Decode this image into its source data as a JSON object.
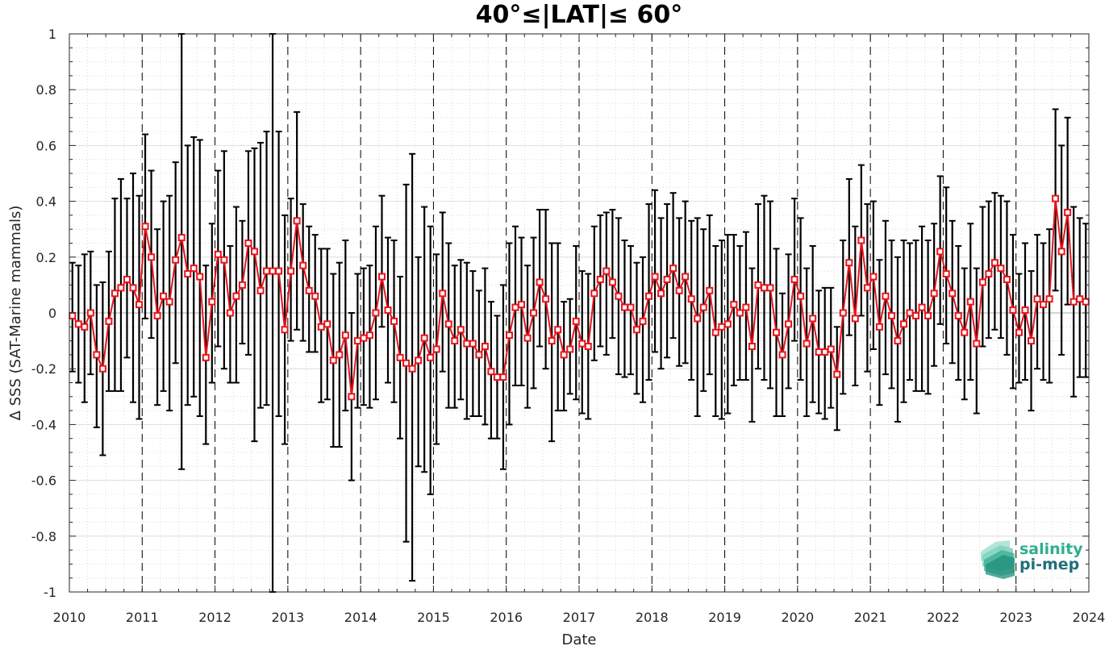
{
  "chart_data": {
    "type": "line",
    "title": "40°≤|LAT|≤ 60°",
    "xlabel": "Date",
    "ylabel": "Δ SSS (SAT-Marine mammals)",
    "xlim": [
      "2010-01-01",
      "2024-01-01"
    ],
    "ylim": [
      -1,
      1
    ],
    "x_tick_labels": [
      "2010",
      "2011",
      "2012",
      "2013",
      "2014",
      "2015",
      "2016",
      "2017",
      "2018",
      "2019",
      "2020",
      "2021",
      "2022",
      "2023",
      "2024"
    ],
    "y_tick_labels": [
      "-1",
      "-0.8",
      "-0.6",
      "-0.4",
      "-0.2",
      "0",
      "0.2",
      "0.4",
      "0.6",
      "0.8",
      "1"
    ],
    "y_ticks": [
      -1,
      -0.8,
      -0.6,
      -0.4,
      -0.2,
      0,
      0.2,
      0.4,
      0.6,
      0.8,
      1
    ],
    "grid": true,
    "year_dividers": [
      "2011",
      "2012",
      "2013",
      "2014",
      "2015",
      "2016",
      "2017",
      "2018",
      "2019",
      "2020",
      "2021",
      "2022",
      "2023"
    ],
    "series": [
      {
        "color": "#e8141c",
        "errorbar_color": "#000000",
        "x": [
          "2010-01",
          "2010-02",
          "2010-03",
          "2010-04",
          "2010-05",
          "2010-06",
          "2010-07",
          "2010-08",
          "2010-09",
          "2010-10",
          "2010-11",
          "2010-12",
          "2011-01",
          "2011-02",
          "2011-03",
          "2011-04",
          "2011-05",
          "2011-06",
          "2011-07",
          "2011-08",
          "2011-09",
          "2011-10",
          "2011-11",
          "2011-12",
          "2012-01",
          "2012-02",
          "2012-03",
          "2012-04",
          "2012-05",
          "2012-06",
          "2012-07",
          "2012-08",
          "2012-09",
          "2012-10",
          "2012-11",
          "2012-12",
          "2013-01",
          "2013-02",
          "2013-03",
          "2013-04",
          "2013-05",
          "2013-06",
          "2013-07",
          "2013-08",
          "2013-09",
          "2013-10",
          "2013-11",
          "2013-12",
          "2014-01",
          "2014-02",
          "2014-03",
          "2014-04",
          "2014-05",
          "2014-06",
          "2014-07",
          "2014-08",
          "2014-09",
          "2014-10",
          "2014-11",
          "2014-12",
          "2015-01",
          "2015-02",
          "2015-03",
          "2015-04",
          "2015-05",
          "2015-06",
          "2015-07",
          "2015-08",
          "2015-09",
          "2015-10",
          "2015-11",
          "2015-12",
          "2016-01",
          "2016-02",
          "2016-03",
          "2016-04",
          "2016-05",
          "2016-06",
          "2016-07",
          "2016-08",
          "2016-09",
          "2016-10",
          "2016-11",
          "2016-12",
          "2017-01",
          "2017-02",
          "2017-03",
          "2017-04",
          "2017-05",
          "2017-06",
          "2017-07",
          "2017-08",
          "2017-09",
          "2017-10",
          "2017-11",
          "2017-12",
          "2018-01",
          "2018-02",
          "2018-03",
          "2018-04",
          "2018-05",
          "2018-06",
          "2018-07",
          "2018-08",
          "2018-09",
          "2018-10",
          "2018-11",
          "2018-12",
          "2019-01",
          "2019-02",
          "2019-03",
          "2019-04",
          "2019-05",
          "2019-06",
          "2019-07",
          "2019-08",
          "2019-09",
          "2019-10",
          "2019-11",
          "2019-12",
          "2020-01",
          "2020-02",
          "2020-03",
          "2020-04",
          "2020-05",
          "2020-06",
          "2020-07",
          "2020-08",
          "2020-09",
          "2020-10",
          "2020-11",
          "2020-12",
          "2021-01",
          "2021-02",
          "2021-03",
          "2021-04",
          "2021-05",
          "2021-06",
          "2021-07",
          "2021-08",
          "2021-09",
          "2021-10",
          "2021-11",
          "2021-12",
          "2022-01",
          "2022-02",
          "2022-03",
          "2022-04",
          "2022-05",
          "2022-06",
          "2022-07",
          "2022-08",
          "2022-09",
          "2022-10",
          "2022-11",
          "2022-12",
          "2023-01",
          "2023-02",
          "2023-03",
          "2023-04",
          "2023-05",
          "2023-06",
          "2023-07",
          "2023-08",
          "2023-09",
          "2023-10",
          "2023-11",
          "2023-12"
        ],
        "values": [
          -0.01,
          -0.04,
          -0.05,
          0.0,
          -0.15,
          -0.2,
          -0.03,
          0.07,
          0.09,
          0.12,
          0.09,
          0.03,
          0.31,
          0.2,
          -0.01,
          0.06,
          0.04,
          0.19,
          0.27,
          0.14,
          0.16,
          0.13,
          -0.16,
          0.04,
          0.21,
          0.19,
          0.0,
          0.06,
          0.1,
          0.25,
          0.22,
          0.08,
          0.15,
          0.15,
          0.15,
          -0.06,
          0.15,
          0.33,
          0.17,
          0.08,
          0.06,
          -0.05,
          -0.04,
          -0.17,
          -0.15,
          -0.08,
          -0.3,
          -0.1,
          -0.09,
          -0.08,
          0.0,
          0.13,
          0.01,
          -0.03,
          -0.16,
          -0.18,
          -0.2,
          -0.17,
          -0.09,
          -0.16,
          -0.13,
          0.07,
          -0.04,
          -0.1,
          -0.06,
          -0.11,
          -0.11,
          -0.15,
          -0.12,
          -0.21,
          -0.23,
          -0.23,
          -0.08,
          0.02,
          0.03,
          -0.09,
          0.0,
          0.11,
          0.05,
          -0.1,
          -0.06,
          -0.15,
          -0.13,
          -0.03,
          -0.11,
          -0.12,
          0.07,
          0.12,
          0.15,
          0.11,
          0.06,
          0.02,
          0.02,
          -0.06,
          -0.03,
          0.06,
          0.13,
          0.07,
          0.12,
          0.16,
          0.08,
          0.13,
          0.05,
          -0.02,
          0.02,
          0.08,
          -0.07,
          -0.05,
          -0.04,
          0.03,
          0.0,
          0.02,
          -0.12,
          0.1,
          0.09,
          0.09,
          -0.07,
          -0.15,
          -0.04,
          0.12,
          0.06,
          -0.11,
          -0.02,
          -0.14,
          -0.14,
          -0.13,
          -0.22,
          0.0,
          0.18,
          -0.02,
          0.26,
          0.09,
          0.13,
          -0.05,
          0.06,
          -0.01,
          -0.1,
          -0.04,
          0.0,
          -0.01,
          0.02,
          -0.01,
          0.07,
          0.22,
          0.14,
          0.07,
          -0.01,
          -0.07,
          0.04,
          -0.11,
          0.11,
          0.14,
          0.18,
          0.16,
          0.12,
          0.01,
          -0.07,
          0.01,
          -0.1,
          0.05,
          0.03,
          0.05,
          0.41,
          0.22,
          0.36,
          0.04,
          0.05,
          0.04
        ],
        "err_low": [
          -0.21,
          -0.25,
          -0.32,
          -0.22,
          -0.41,
          -0.51,
          -0.28,
          -0.28,
          -0.28,
          -0.16,
          -0.32,
          -0.38,
          -0.02,
          -0.09,
          -0.33,
          -0.28,
          -0.35,
          -0.18,
          -0.56,
          -0.33,
          -0.3,
          -0.37,
          -0.47,
          -0.25,
          -0.12,
          -0.2,
          -0.25,
          -0.25,
          -0.11,
          -0.15,
          -0.46,
          -0.34,
          -0.33,
          -1.0,
          -0.37,
          -0.47,
          -0.1,
          -0.06,
          -0.1,
          -0.14,
          -0.14,
          -0.32,
          -0.31,
          -0.48,
          -0.48,
          -0.35,
          -0.6,
          -0.34,
          -0.33,
          -0.34,
          -0.31,
          -0.05,
          -0.25,
          -0.32,
          -0.45,
          -0.82,
          -0.96,
          -0.55,
          -0.57,
          -0.65,
          -0.47,
          -0.21,
          -0.34,
          -0.34,
          -0.31,
          -0.38,
          -0.37,
          -0.37,
          -0.4,
          -0.45,
          -0.45,
          -0.56,
          -0.4,
          -0.26,
          -0.26,
          -0.34,
          -0.27,
          -0.12,
          -0.2,
          -0.46,
          -0.35,
          -0.35,
          -0.29,
          -0.31,
          -0.36,
          -0.38,
          -0.17,
          -0.12,
          -0.15,
          -0.09,
          -0.22,
          -0.23,
          -0.22,
          -0.29,
          -0.32,
          -0.24,
          -0.14,
          -0.2,
          -0.16,
          -0.09,
          -0.19,
          -0.18,
          -0.24,
          -0.37,
          -0.28,
          -0.22,
          -0.37,
          -0.38,
          -0.36,
          -0.26,
          -0.24,
          -0.24,
          -0.39,
          -0.2,
          -0.24,
          -0.27,
          -0.37,
          -0.37,
          -0.27,
          -0.1,
          -0.24,
          -0.37,
          -0.32,
          -0.36,
          -0.38,
          -0.34,
          -0.42,
          -0.29,
          -0.08,
          -0.26,
          -0.01,
          -0.21,
          -0.13,
          -0.33,
          -0.22,
          -0.27,
          -0.39,
          -0.32,
          -0.24,
          -0.28,
          -0.28,
          -0.29,
          -0.19,
          -0.04,
          -0.11,
          -0.18,
          -0.24,
          -0.31,
          -0.24,
          -0.36,
          -0.12,
          -0.09,
          -0.06,
          -0.09,
          -0.15,
          -0.27,
          -0.25,
          -0.24,
          -0.35,
          -0.2,
          -0.24,
          -0.25,
          0.08,
          -0.15,
          0.03,
          -0.3,
          -0.23,
          -0.23
        ],
        "err_high": [
          0.18,
          0.17,
          0.21,
          0.22,
          0.1,
          0.11,
          0.22,
          0.41,
          0.48,
          0.41,
          0.5,
          0.42,
          0.64,
          0.51,
          0.3,
          0.4,
          0.42,
          0.54,
          1.0,
          0.6,
          0.63,
          0.62,
          0.17,
          0.32,
          0.51,
          0.58,
          0.24,
          0.38,
          0.33,
          0.58,
          0.59,
          0.61,
          0.65,
          1.0,
          0.65,
          0.35,
          0.41,
          0.72,
          0.39,
          0.31,
          0.28,
          0.23,
          0.23,
          0.14,
          0.18,
          0.26,
          0.0,
          0.14,
          0.16,
          0.17,
          0.31,
          0.42,
          0.27,
          0.26,
          0.13,
          0.46,
          0.57,
          0.2,
          0.38,
          0.31,
          0.21,
          0.36,
          0.25,
          0.17,
          0.19,
          0.18,
          0.15,
          0.08,
          0.16,
          0.04,
          -0.01,
          0.1,
          0.25,
          0.31,
          0.27,
          0.17,
          0.27,
          0.37,
          0.37,
          0.25,
          0.25,
          0.04,
          0.05,
          0.24,
          0.15,
          0.14,
          0.31,
          0.35,
          0.36,
          0.37,
          0.34,
          0.26,
          0.24,
          0.18,
          0.2,
          0.39,
          0.44,
          0.34,
          0.39,
          0.43,
          0.34,
          0.4,
          0.33,
          0.34,
          0.3,
          0.35,
          0.24,
          0.26,
          0.28,
          0.28,
          0.24,
          0.29,
          0.16,
          0.39,
          0.42,
          0.4,
          0.23,
          0.07,
          0.21,
          0.41,
          0.34,
          0.16,
          0.24,
          0.08,
          0.09,
          0.09,
          -0.05,
          0.26,
          0.48,
          0.31,
          0.53,
          0.39,
          0.4,
          0.19,
          0.33,
          0.26,
          0.2,
          0.26,
          0.25,
          0.26,
          0.31,
          0.26,
          0.32,
          0.49,
          0.45,
          0.33,
          0.24,
          0.16,
          0.32,
          0.16,
          0.38,
          0.4,
          0.43,
          0.42,
          0.4,
          0.28,
          0.14,
          0.25,
          0.15,
          0.28,
          0.25,
          0.3,
          0.73,
          0.6,
          0.7,
          0.38,
          0.34,
          0.32
        ]
      }
    ]
  },
  "logo": {
    "line1": "salinity",
    "line2": "pi-mep"
  }
}
